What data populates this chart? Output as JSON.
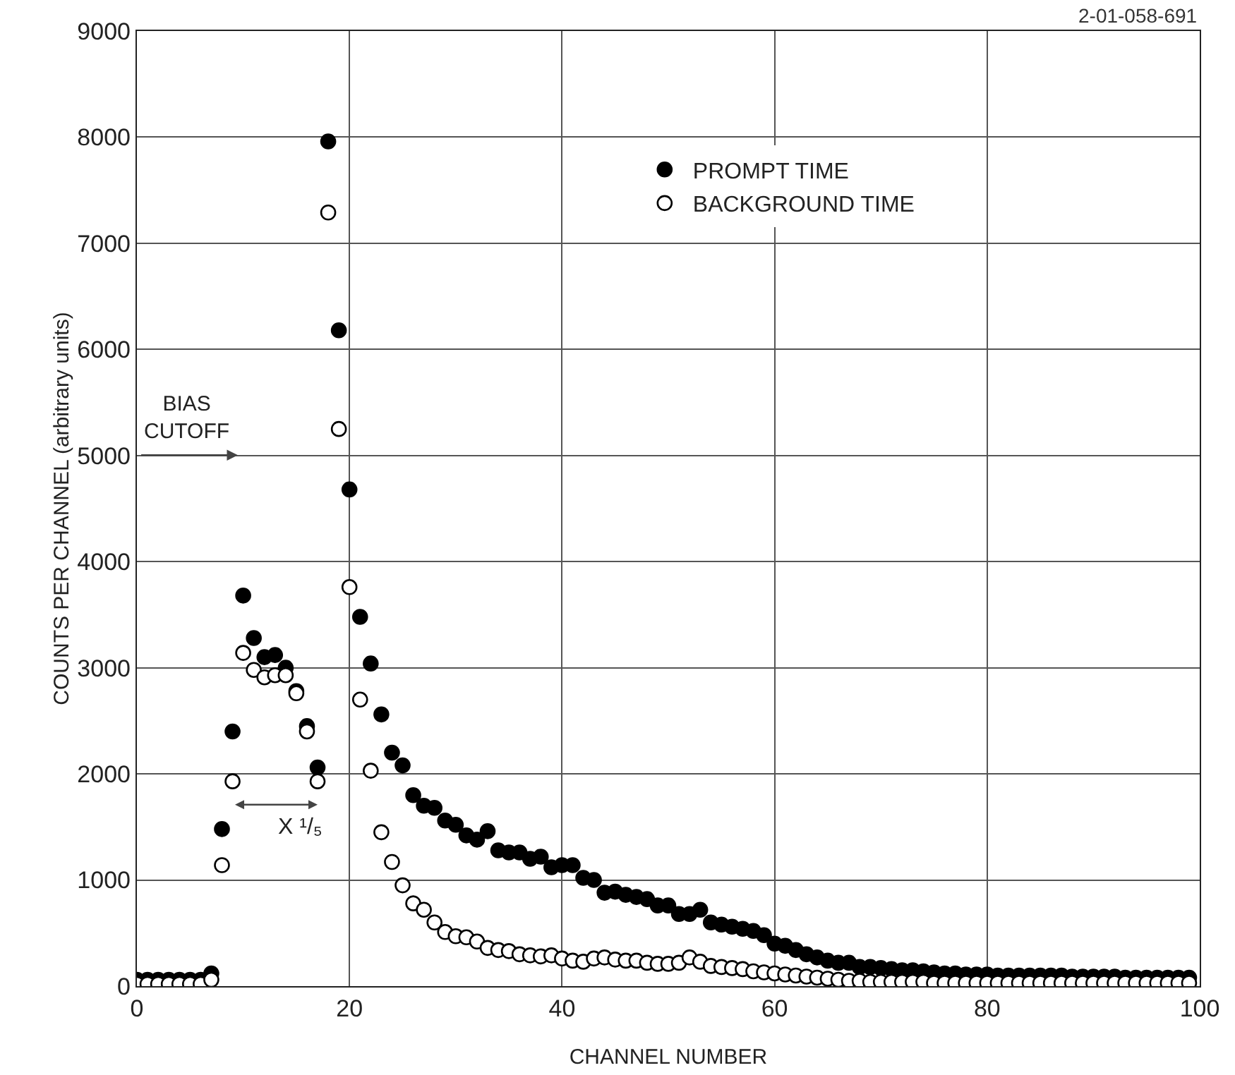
{
  "chart_data": {
    "type": "scatter",
    "xlabel": "CHANNEL NUMBER",
    "ylabel": "COUNTS PER CHANNEL (arbitrary units)",
    "x": [
      0,
      1,
      2,
      3,
      4,
      5,
      6,
      7,
      8,
      9,
      10,
      11,
      12,
      13,
      14,
      15,
      16,
      17,
      18,
      19,
      20,
      21,
      22,
      23,
      24,
      25,
      26,
      27,
      28,
      29,
      30,
      31,
      32,
      33,
      34,
      35,
      36,
      37,
      38,
      39,
      40,
      41,
      42,
      43,
      44,
      45,
      46,
      47,
      48,
      49,
      50,
      51,
      52,
      53,
      54,
      55,
      56,
      57,
      58,
      59,
      60,
      61,
      62,
      63,
      64,
      65,
      66,
      67,
      68,
      69,
      70,
      71,
      72,
      73,
      74,
      75,
      76,
      77,
      78,
      79,
      80,
      81,
      82,
      83,
      84,
      85,
      86,
      87,
      88,
      89,
      90,
      91,
      92,
      93,
      94,
      95,
      96,
      97,
      98,
      99
    ],
    "series": [
      {
        "name": "PROMPT TIME",
        "color": "#000000",
        "values": [
          60,
          60,
          60,
          60,
          60,
          60,
          60,
          120,
          1480,
          2400,
          3680,
          3280,
          3100,
          3120,
          3000,
          2780,
          2450,
          2060,
          7960,
          6180,
          4680,
          3480,
          3040,
          2560,
          2200,
          2080,
          1800,
          1700,
          1680,
          1560,
          1520,
          1420,
          1380,
          1460,
          1280,
          1260,
          1260,
          1200,
          1220,
          1120,
          1140,
          1140,
          1020,
          1000,
          880,
          890,
          860,
          840,
          820,
          760,
          760,
          680,
          680,
          720,
          600,
          580,
          560,
          540,
          520,
          480,
          400,
          380,
          340,
          300,
          270,
          240,
          220,
          220,
          180,
          180,
          170,
          160,
          150,
          150,
          140,
          130,
          120,
          120,
          110,
          110,
          110,
          100,
          100,
          100,
          100,
          100,
          100,
          100,
          90,
          90,
          90,
          90,
          90,
          80,
          80,
          80,
          80,
          80,
          80,
          80
        ]
      },
      {
        "name": "BACKGROUND TIME",
        "color": "#ffffff",
        "values": [
          20,
          20,
          20,
          20,
          20,
          20,
          20,
          60,
          1140,
          1930,
          3140,
          2980,
          2910,
          2930,
          2930,
          2760,
          2400,
          1930,
          7290,
          5250,
          3760,
          2700,
          2030,
          1450,
          1170,
          950,
          780,
          720,
          600,
          510,
          470,
          460,
          420,
          360,
          340,
          330,
          300,
          290,
          280,
          290,
          260,
          240,
          230,
          260,
          270,
          250,
          240,
          240,
          220,
          210,
          210,
          220,
          270,
          230,
          190,
          180,
          170,
          160,
          140,
          130,
          120,
          110,
          100,
          90,
          80,
          70,
          60,
          50,
          50,
          40,
          40,
          40,
          40,
          40,
          40,
          30,
          30,
          30,
          30,
          30,
          30,
          30,
          30,
          30,
          30,
          30,
          30,
          30,
          30,
          30,
          30,
          30,
          30,
          30,
          30,
          30,
          30,
          30,
          30,
          30
        ]
      }
    ],
    "xlim": [
      0,
      100
    ],
    "xticks": [
      0,
      20,
      40,
      60,
      80,
      100
    ],
    "ylim": [
      0,
      9000
    ],
    "yticks": [
      0,
      1000,
      2000,
      3000,
      4000,
      5000,
      6000,
      7000,
      8000,
      9000
    ],
    "grid": true,
    "legend": "top right",
    "marker": "circle",
    "annotations": [
      "BIAS\nCUTOFF",
      "X ¹/₅",
      "2-01-058-691"
    ]
  }
}
